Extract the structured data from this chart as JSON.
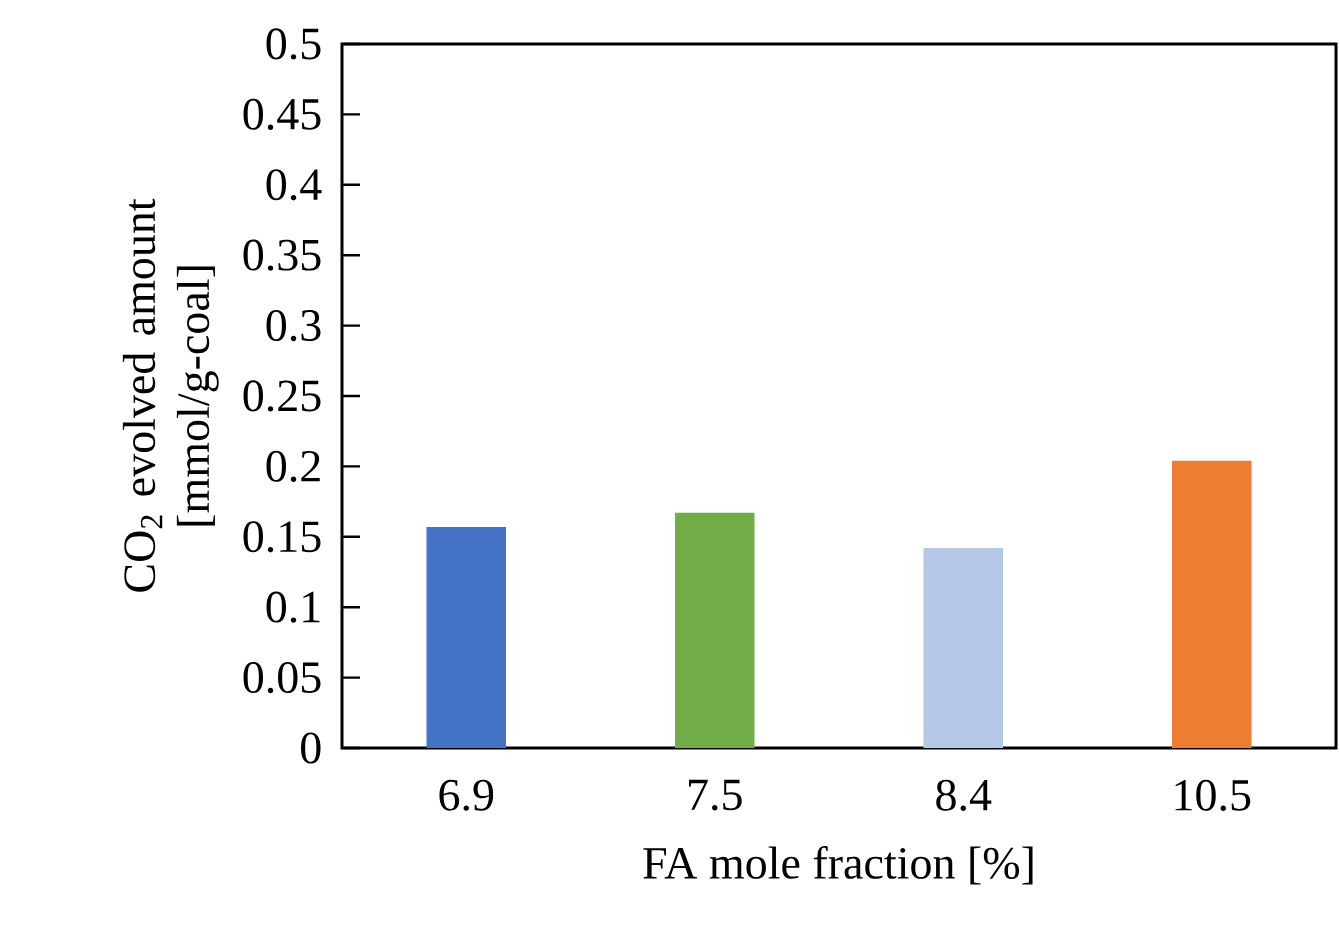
{
  "chart_data": {
    "type": "bar",
    "categories": [
      "6.9",
      "7.5",
      "8.4",
      "10.5"
    ],
    "values": [
      0.157,
      0.167,
      0.142,
      0.204
    ],
    "colors": [
      "#4472c4",
      "#70ad47",
      "#b4c7e7",
      "#ed7d31"
    ],
    "xlabel": "FA mole fraction [%]",
    "ylabel": "CO$_{2}$ evolved amount [mmol/g-coal]",
    "ylim": [
      0,
      0.5
    ],
    "yticks": [
      0,
      0.05,
      0.1,
      0.15,
      0.2,
      0.25,
      0.3,
      0.35,
      0.4,
      0.45,
      0.5
    ]
  }
}
